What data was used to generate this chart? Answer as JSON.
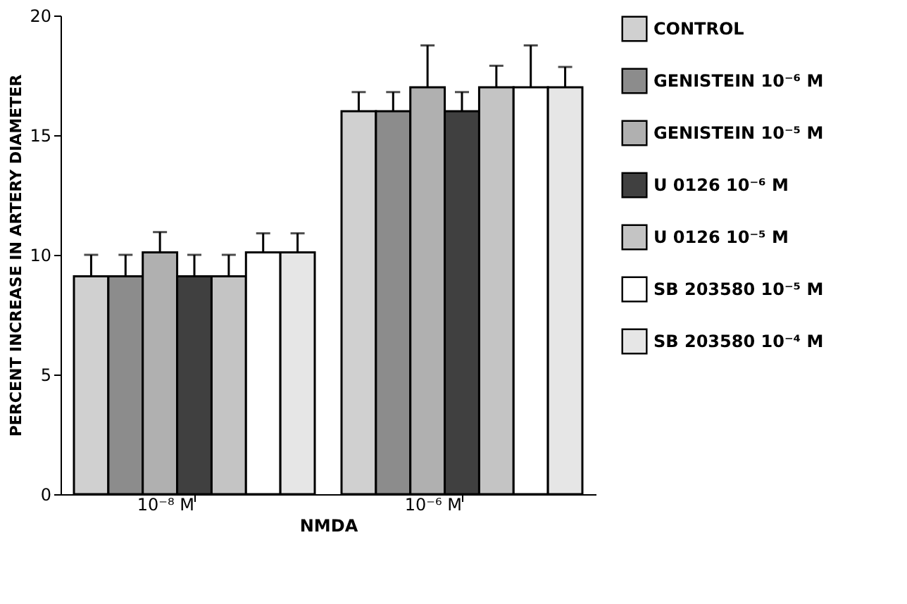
{
  "chart_data": {
    "type": "bar",
    "xlabel": "NMDA",
    "ylabel": "PERCENT INCREASE IN ARTERY DIAMETER",
    "categories": [
      "10⁻⁸ M",
      "10⁻⁶ M"
    ],
    "series": [
      {
        "name": "CONTROL",
        "color": "#d0d0d0",
        "values": [
          9.1,
          16.0
        ],
        "errors": [
          0.9,
          0.8
        ]
      },
      {
        "name": "GENISTEIN  10⁻⁶ M",
        "color": "#8c8c8c",
        "values": [
          9.1,
          16.0
        ],
        "errors": [
          0.9,
          0.8
        ]
      },
      {
        "name": "GENISTEIN  10⁻⁵ M",
        "color": "#b0b0b0",
        "values": [
          10.1,
          17.0
        ],
        "errors": [
          0.85,
          1.75
        ]
      },
      {
        "name": "U 0126  10⁻⁶ M",
        "color": "#404040",
        "values": [
          9.1,
          16.0
        ],
        "errors": [
          0.9,
          0.8
        ]
      },
      {
        "name": "U 0126  10⁻⁵ M",
        "color": "#c4c4c4",
        "values": [
          9.1,
          17.0
        ],
        "errors": [
          0.9,
          0.9
        ]
      },
      {
        "name": "SB  203580  10⁻⁵ M",
        "color": "#ffffff",
        "values": [
          10.1,
          17.0
        ],
        "errors": [
          0.8,
          1.75
        ]
      },
      {
        "name": "SB  203580  10⁻⁴ M",
        "color": "#e6e6e6",
        "values": [
          10.1,
          17.0
        ],
        "errors": [
          0.8,
          0.85
        ]
      }
    ],
    "ylim": [
      0,
      20
    ],
    "yticks": [
      0,
      5,
      10,
      15,
      20
    ],
    "grid": false,
    "legend": "right"
  }
}
